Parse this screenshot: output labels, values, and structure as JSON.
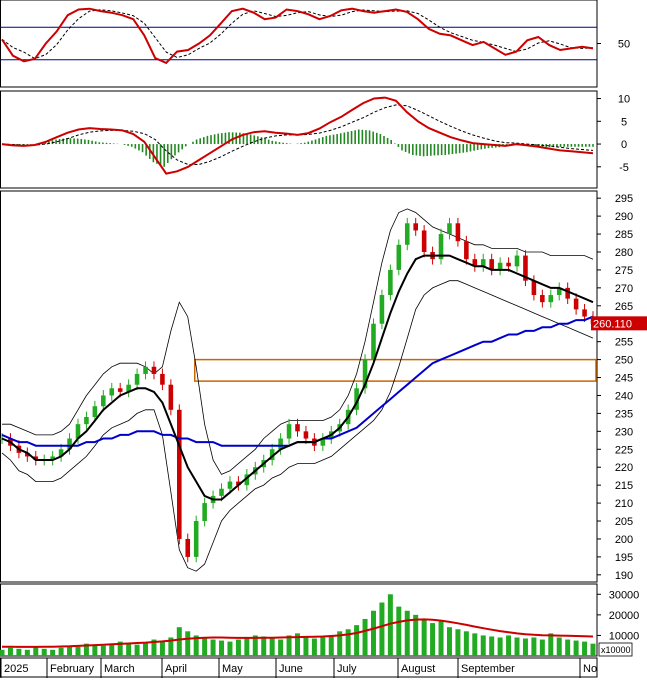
{
  "colors": {
    "background": "#ffffff",
    "frame": "#000000",
    "price_up": "#22aa22",
    "price_down": "#cc0000",
    "sma_fast": "#000000",
    "sma_slow": "#0000cc",
    "bollinger": "#000000",
    "rsi_line": "#cc0000",
    "oscillator_guide": "#000080",
    "macd_line": "#cc0000",
    "macd_hist": "#228822",
    "signal_line": "#000000",
    "volume_bar": "#22aa22",
    "volume_ma": "#cc0000",
    "zone_box": "#cc6600",
    "price_tag_bg": "#cc0000",
    "price_tag_text": "#ffffff"
  },
  "chart_data": [
    {
      "type": "line",
      "panel": "rsi",
      "ylabel_ticks": [
        "50"
      ],
      "y_ticks": [
        50
      ],
      "ylim": [
        0,
        100
      ],
      "guides": [
        30,
        70
      ],
      "series": [
        {
          "values": [
            55,
            35,
            28,
            31,
            50,
            65,
            85,
            92,
            93,
            90,
            88,
            85,
            80,
            60,
            32,
            26,
            40,
            42,
            50,
            60,
            75,
            90,
            93,
            88,
            80,
            82,
            92,
            90,
            86,
            80,
            84,
            91,
            93,
            90,
            88,
            90,
            92,
            89,
            80,
            68,
            62,
            60,
            54,
            48,
            52,
            44,
            36,
            40,
            54,
            58,
            48,
            42,
            44,
            46,
            44
          ]
        }
      ]
    },
    {
      "type": "line",
      "panel": "macd",
      "y_ticks": [
        10,
        5,
        0,
        -5
      ],
      "ylabel_ticks": [
        "10",
        "5",
        "0",
        "-5"
      ],
      "ylim": [
        -9,
        11
      ],
      "series": [
        {
          "values": [
            0,
            -0.3,
            -0.4,
            -0.2,
            0.5,
            1.5,
            2.5,
            3.2,
            3.5,
            3.3,
            3.2,
            3.0,
            2.2,
            0.5,
            -3.0,
            -6.5,
            -6.0,
            -5.0,
            -3.5,
            -2.0,
            -0.5,
            1.0,
            2.0,
            2.6,
            2.8,
            2.5,
            2.3,
            2.0,
            2.4,
            3.4,
            4.8,
            6.0,
            7.5,
            9.0,
            10.0,
            10.2,
            9.5,
            7.0,
            5.0,
            3.5,
            2.5,
            1.5,
            0.8,
            0.2,
            0.0,
            -0.2,
            -0.4,
            0.0,
            -0.3,
            -0.6,
            -1.0,
            -1.4,
            -1.6,
            -1.8,
            -2.0
          ]
        },
        {
          "values": [
            0,
            -0.1,
            -0.2,
            -0.2,
            0.0,
            0.5,
            1.2,
            2.0,
            2.6,
            2.9,
            3.0,
            3.0,
            2.8,
            2.3,
            1.0,
            -1.5,
            -3.5,
            -4.5,
            -4.5,
            -3.8,
            -2.8,
            -1.6,
            -0.5,
            0.5,
            1.3,
            1.8,
            2.0,
            2.0,
            2.1,
            2.4,
            3.0,
            3.8,
            4.8,
            5.8,
            7.0,
            8.0,
            8.6,
            8.4,
            7.4,
            6.2,
            5.0,
            3.9,
            2.9,
            2.0,
            1.3,
            0.7,
            0.3,
            0.2,
            0.0,
            -0.2,
            -0.4,
            -0.7,
            -1.0,
            -1.2,
            -1.4
          ]
        }
      ]
    },
    {
      "type": "line",
      "panel": "price",
      "y_ticks": [
        190,
        195,
        200,
        205,
        210,
        215,
        220,
        225,
        230,
        235,
        240,
        245,
        250,
        255,
        260,
        265,
        270,
        275,
        280,
        285,
        290,
        295
      ],
      "ylabel_ticks": [
        "190",
        "195",
        "200",
        "205",
        "210",
        "215",
        "220",
        "225",
        "230",
        "235",
        "240",
        "245",
        "250",
        "255",
        "260",
        "265",
        "270",
        "275",
        "280",
        "285",
        "290",
        "295"
      ],
      "ylim": [
        188,
        297
      ],
      "last_price_label": "260.110",
      "zone_box": {
        "low": 244,
        "high": 250
      },
      "close": [
        228,
        226,
        224,
        223,
        222,
        222,
        223,
        225,
        228,
        232,
        234,
        237,
        240,
        242,
        241,
        243,
        246,
        248,
        246,
        243,
        236,
        200,
        195,
        205,
        210,
        212,
        214,
        216,
        215,
        218,
        220,
        222,
        225,
        228,
        232,
        230,
        228,
        226,
        228,
        230,
        232,
        236,
        242,
        250,
        260,
        268,
        275,
        282,
        288,
        286,
        280,
        278,
        285,
        288,
        283,
        278,
        276,
        278,
        275,
        277,
        276,
        279,
        272,
        268,
        266,
        268,
        270,
        267,
        264,
        262,
        260
      ],
      "sma_fast": [
        228,
        227,
        225,
        224,
        222,
        222,
        222,
        223,
        225,
        228,
        230,
        233,
        236,
        238,
        240,
        241,
        242,
        242,
        241,
        238,
        232,
        226,
        220,
        216,
        212,
        211,
        211,
        213,
        215,
        217,
        219,
        221,
        223,
        225,
        226,
        227,
        227,
        227,
        228,
        229,
        231,
        234,
        238,
        243,
        249,
        256,
        263,
        269,
        274,
        278,
        279,
        279,
        279,
        279,
        278,
        277,
        276,
        276,
        275,
        275,
        275,
        274,
        273,
        272,
        271,
        270,
        270,
        269,
        268,
        267,
        266
      ],
      "sma_slow": [
        229,
        228,
        227,
        227,
        226,
        226,
        226,
        226,
        226,
        226,
        227,
        227,
        228,
        228,
        229,
        229,
        230,
        230,
        230,
        229,
        229,
        228,
        228,
        227,
        227,
        227,
        226,
        226,
        226,
        226,
        226,
        226,
        226,
        226,
        226,
        227,
        227,
        227,
        228,
        228,
        229,
        230,
        231,
        233,
        235,
        237,
        239,
        241,
        243,
        245,
        247,
        249,
        250,
        251,
        252,
        253,
        254,
        255,
        255,
        256,
        257,
        257,
        258,
        258,
        259,
        259,
        260,
        260,
        261,
        261,
        262
      ],
      "boll_upper": [
        232,
        232,
        231,
        230,
        229,
        229,
        229,
        230,
        232,
        236,
        240,
        243,
        246,
        248,
        249,
        249,
        249,
        248,
        246,
        248,
        258,
        266,
        262,
        248,
        232,
        222,
        218,
        219,
        221,
        223,
        225,
        228,
        230,
        232,
        233,
        233,
        233,
        233,
        233,
        234,
        236,
        240,
        246,
        255,
        266,
        277,
        286,
        291,
        292,
        291,
        289,
        287,
        286,
        285,
        284,
        283,
        282,
        282,
        281,
        281,
        281,
        281,
        280,
        280,
        280,
        279,
        279,
        279,
        279,
        279,
        278
      ],
      "boll_lower": [
        224,
        222,
        219,
        218,
        216,
        216,
        216,
        217,
        219,
        221,
        223,
        226,
        229,
        231,
        232,
        233,
        235,
        236,
        236,
        229,
        213,
        197,
        192,
        191,
        193,
        199,
        205,
        208,
        210,
        212,
        214,
        215,
        217,
        218,
        220,
        221,
        221,
        221,
        222,
        223,
        225,
        227,
        229,
        231,
        233,
        236,
        241,
        248,
        256,
        264,
        268,
        270,
        271,
        272,
        272,
        271,
        270,
        269,
        268,
        267,
        266,
        265,
        264,
        263,
        262,
        261,
        260,
        259,
        258,
        257,
        256
      ]
    },
    {
      "type": "bar",
      "panel": "volume",
      "y_ticks": [
        10000,
        20000,
        30000
      ],
      "ylabel_ticks": [
        "10000",
        "20000",
        "30000"
      ],
      "unit_label": "x10000",
      "ylim": [
        0,
        35000
      ],
      "values": [
        3000,
        4000,
        3500,
        3000,
        4500,
        3500,
        3000,
        4000,
        5000,
        4500,
        6000,
        5500,
        5000,
        6000,
        7000,
        6000,
        5500,
        6500,
        8000,
        7000,
        9000,
        14000,
        12000,
        10000,
        9000,
        8000,
        7500,
        7000,
        8000,
        9000,
        10000,
        9500,
        9000,
        8000,
        10000,
        11000,
        9000,
        8500,
        9000,
        10000,
        12000,
        13000,
        15000,
        18000,
        22000,
        26000,
        30000,
        24000,
        22000,
        20000,
        18000,
        16000,
        17000,
        14000,
        13000,
        12000,
        11000,
        10000,
        9500,
        9000,
        10000,
        9000,
        8500,
        9000,
        8000,
        11000,
        9000,
        8000,
        7500,
        7000,
        6000
      ],
      "ma": [
        4500,
        4500,
        4400,
        4400,
        4400,
        4500,
        4500,
        4600,
        4700,
        4900,
        5100,
        5300,
        5500,
        5700,
        5900,
        6100,
        6300,
        6500,
        6800,
        7100,
        7500,
        8000,
        8400,
        8700,
        8900,
        9000,
        9000,
        8900,
        8800,
        8800,
        8800,
        8900,
        8900,
        9000,
        9100,
        9200,
        9300,
        9400,
        9500,
        9700,
        10000,
        10500,
        11200,
        12200,
        13300,
        14500,
        15700,
        16600,
        17300,
        17700,
        17800,
        17600,
        17200,
        16600,
        15900,
        15100,
        14300,
        13500,
        12800,
        12100,
        11500,
        11000,
        10600,
        10300,
        10100,
        10000,
        9900,
        9800,
        9700,
        9600,
        9500
      ]
    },
    {
      "type": "table",
      "panel": "time_axis",
      "categories": [
        "2025",
        "February",
        "March",
        "April",
        "May",
        "June",
        "July",
        "August",
        "September",
        "No"
      ]
    }
  ]
}
